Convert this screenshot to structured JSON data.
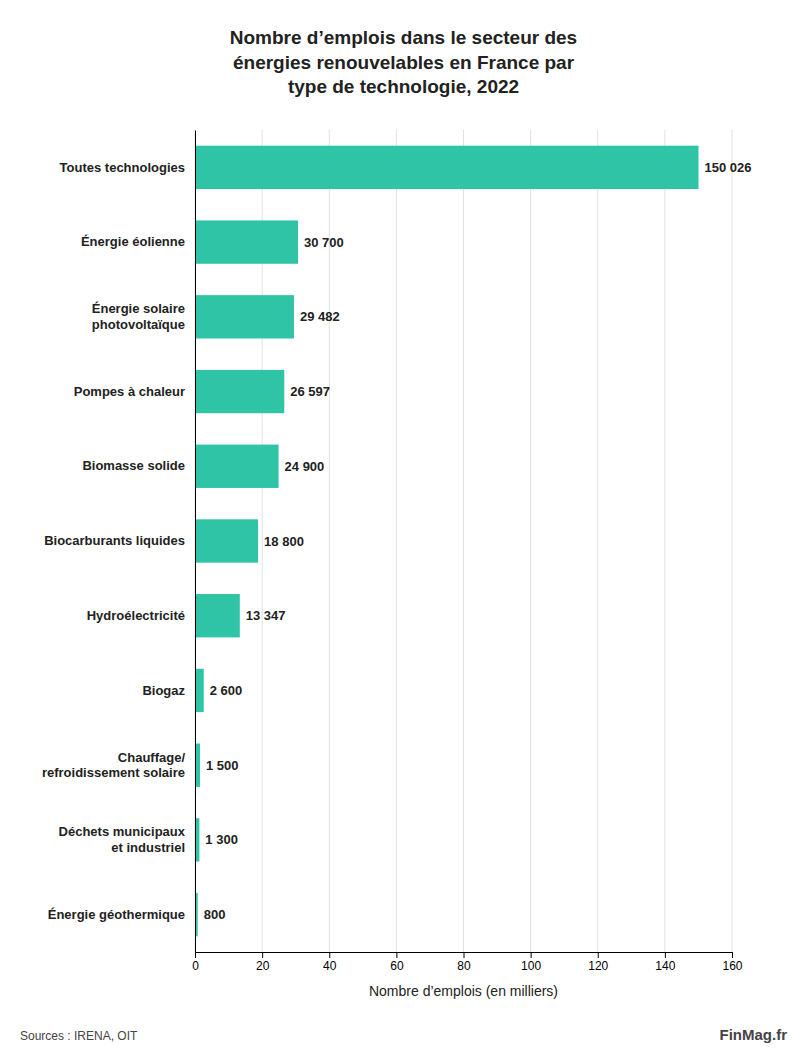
{
  "chart_data": {
    "type": "bar",
    "orientation": "horizontal",
    "title": "Nombre d’emplois dans le secteur des\nénergies renouvelables en France par\ntype de technologie, 2022",
    "categories": [
      "Toutes technologies",
      "Énergie éolienne",
      "Énergie solaire\nphotovoltaïque",
      "Pompes à chaleur",
      "Biomasse solide",
      "Biocarburants liquides",
      "Hydroélectricité",
      "Biogaz",
      "Chauffage/\nrefroidissement solaire",
      "Déchets municipaux\net industriel",
      "Énergie géothermique"
    ],
    "values": [
      150026,
      30700,
      29482,
      26597,
      24900,
      18800,
      13347,
      2600,
      1500,
      1300,
      800
    ],
    "value_labels": [
      "150 026",
      "30 700",
      "29 482",
      "26 597",
      "24 900",
      "18 800",
      "13 347",
      "2 600",
      "1 500",
      "1 300",
      "800"
    ],
    "data_labels": true,
    "color": "#2ec4a5",
    "xlabel": "Nombre d’emplois (en milliers)",
    "xlim": [
      0,
      160000
    ],
    "xticks": [
      {
        "value": 0,
        "label": "0"
      },
      {
        "value": 20000,
        "label": "20"
      },
      {
        "value": 40000,
        "label": "40"
      },
      {
        "value": 60000,
        "label": "60"
      },
      {
        "value": 80000,
        "label": "80"
      },
      {
        "value": 100000,
        "label": "100"
      },
      {
        "value": 120000,
        "label": "120"
      },
      {
        "value": 140000,
        "label": "140"
      },
      {
        "value": 160000,
        "label": "160"
      }
    ],
    "grid": true,
    "annotations": [
      "Sources : IRENA, OIT",
      "FinMag.fr"
    ]
  }
}
